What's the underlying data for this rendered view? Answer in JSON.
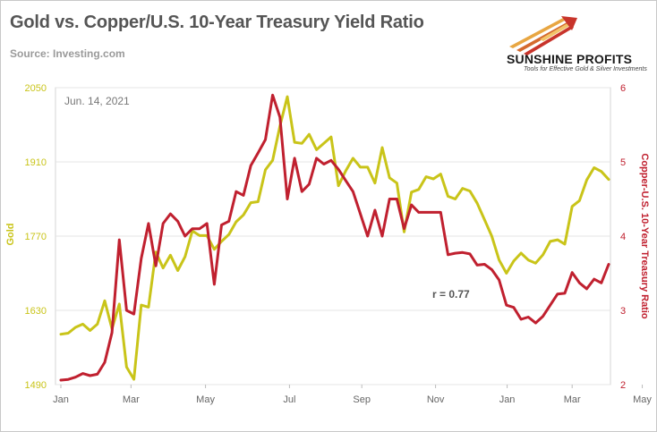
{
  "title": "Gold vs. Copper/U.S. 10-Year Treasury Yield Ratio",
  "source": "Source: Investing.com",
  "logo": {
    "name": "SUNSHINE PROFITS",
    "tagline": "Tools for Effective Gold & Silver Investments"
  },
  "colors": {
    "gold": "#c9c419",
    "ratio": "#c0202f",
    "grid": "#e4e4e4",
    "axis_text": "#666666"
  },
  "chart_data": {
    "type": "line",
    "title": "Gold vs. Copper/U.S. 10-Year Treasury Yield Ratio",
    "annotation_date": "Jun. 14, 2021",
    "annotation_r": "r = 0.77",
    "xlabel": "",
    "x_ticks": [
      "Jan",
      "Mar",
      "May",
      "Jul",
      "Sep",
      "Nov",
      "Jan",
      "Mar",
      "May"
    ],
    "x_tick_weeks": [
      0,
      9.6,
      19.8,
      31.3,
      41.2,
      51.3,
      61.1,
      70.0,
      79.6
    ],
    "y_left": {
      "label": "Gold",
      "min": 1490,
      "max": 2050,
      "ticks": [
        1490,
        1630,
        1770,
        1910,
        2050
      ]
    },
    "y_right": {
      "label": "Copper-U.S. 10-Year Treasury Ratio",
      "min": 2,
      "max": 6,
      "ticks": [
        2,
        3,
        4,
        5,
        6
      ]
    },
    "grid": true,
    "legend": "none",
    "series": [
      {
        "axis": "left",
        "values": [
          1585,
          1587,
          1598,
          1604,
          1592,
          1604,
          1648,
          1595,
          1642,
          1523,
          1500,
          1640,
          1636,
          1740,
          1710,
          1734,
          1705,
          1731,
          1780,
          1771,
          1771,
          1745,
          1760,
          1773,
          1797,
          1810,
          1833,
          1835,
          1895,
          1913,
          1978,
          2033,
          1947,
          1945,
          1962,
          1933,
          1945,
          1957,
          1865,
          1893,
          1917,
          1900,
          1900,
          1870,
          1937,
          1880,
          1870,
          1778,
          1853,
          1858,
          1882,
          1878,
          1887,
          1845,
          1840,
          1860,
          1855,
          1832,
          1801,
          1770,
          1725,
          1700,
          1723,
          1738,
          1725,
          1719,
          1735,
          1760,
          1763,
          1755,
          1826,
          1837,
          1876,
          1899,
          1892,
          1877
        ]
      },
      {
        "axis": "right",
        "values": [
          2.06,
          2.07,
          2.1,
          2.15,
          2.12,
          2.14,
          2.3,
          2.7,
          3.95,
          3.0,
          2.95,
          3.7,
          4.17,
          3.6,
          4.17,
          4.3,
          4.2,
          4.0,
          4.1,
          4.1,
          4.17,
          3.35,
          4.15,
          4.2,
          4.6,
          4.55,
          4.95,
          5.12,
          5.3,
          5.9,
          5.6,
          4.5,
          5.05,
          4.6,
          4.7,
          5.05,
          4.97,
          5.02,
          4.9,
          4.75,
          4.6,
          4.3,
          4.0,
          4.35,
          4.0,
          4.5,
          4.5,
          4.1,
          4.42,
          4.32,
          4.32,
          4.32,
          4.32,
          3.75,
          3.77,
          3.78,
          3.76,
          3.61,
          3.62,
          3.55,
          3.41,
          3.07,
          3.04,
          2.88,
          2.91,
          2.83,
          2.92,
          3.07,
          3.22,
          3.23,
          3.51,
          3.37,
          3.29,
          3.42,
          3.37,
          3.62
        ]
      }
    ]
  }
}
